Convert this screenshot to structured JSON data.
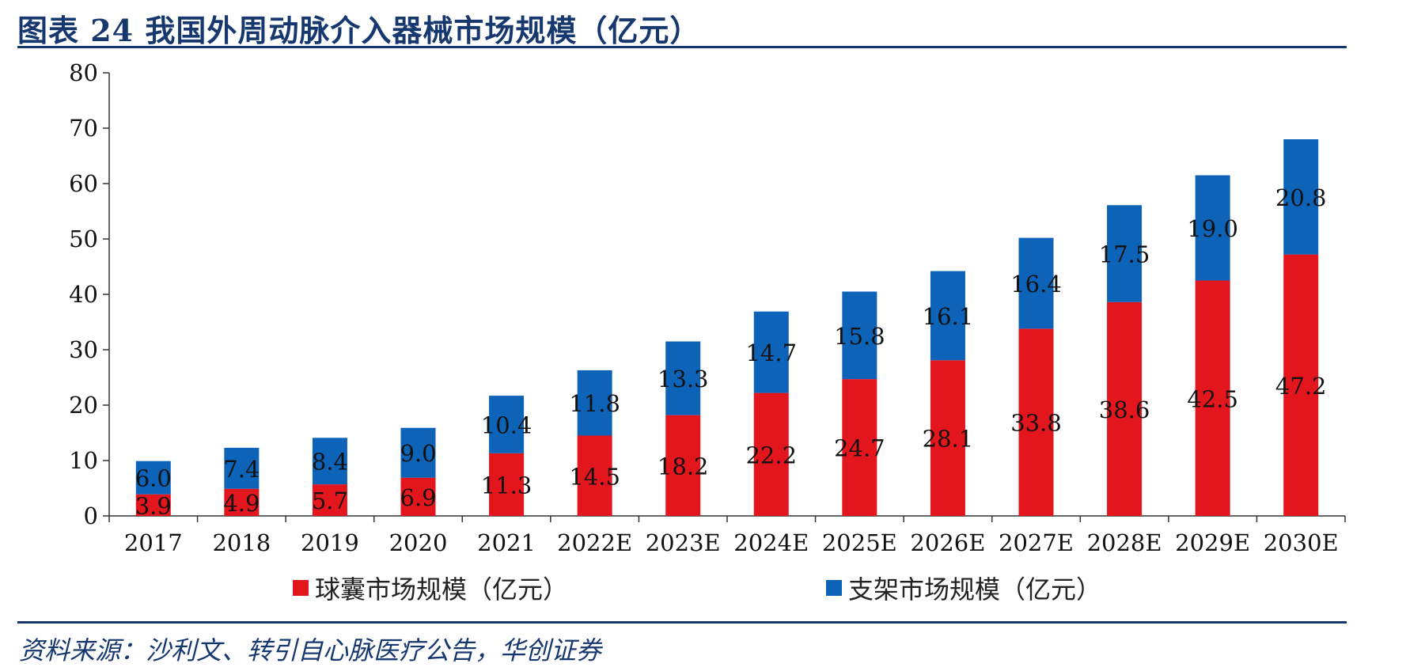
{
  "title": "图表 24    我国外周动脉介入器械市场规模（亿元）",
  "source": "资料来源：沙利文、转引自心脉医疗公告，华创证券",
  "colors": {
    "balloon": "#e3151d",
    "stent": "#0d63b8",
    "rule": "#17386f"
  },
  "chart_data": {
    "type": "bar",
    "stacked": true,
    "categories": [
      "2017",
      "2018",
      "2019",
      "2020",
      "2021",
      "2022E",
      "2023E",
      "2024E",
      "2025E",
      "2026E",
      "2027E",
      "2028E",
      "2029E",
      "2030E"
    ],
    "series": [
      {
        "name": "球囊市场规模（亿元）",
        "values": [
          3.9,
          4.9,
          5.7,
          6.9,
          11.3,
          14.5,
          18.2,
          22.2,
          24.7,
          28.1,
          33.8,
          38.6,
          42.5,
          47.2
        ]
      },
      {
        "name": "支架市场规模（亿元）",
        "values": [
          6.0,
          7.4,
          8.4,
          9.0,
          10.4,
          11.8,
          13.3,
          14.7,
          15.8,
          16.1,
          16.4,
          17.5,
          19.0,
          20.8
        ]
      }
    ],
    "ylim": [
      0,
      80
    ],
    "yticks": [
      "0",
      "10",
      "20",
      "30",
      "40",
      "50",
      "60",
      "70",
      "80"
    ],
    "data_labels": {
      "balloon": [
        "3.9",
        "4.9",
        "5.7",
        "6.9",
        "11.3",
        "14.5",
        "18.2",
        "22.2",
        "24.7",
        "28.1",
        "33.8",
        "38.6",
        "42.5",
        "47.2"
      ],
      "stent": [
        "6.0",
        "7.4",
        "8.4",
        "9.0",
        "10.4",
        "11.8",
        "13.3",
        "14.7",
        "15.8",
        "16.1",
        "16.4",
        "17.5",
        "19.0",
        "20.8"
      ]
    },
    "legend": "bottom",
    "grid": false
  }
}
